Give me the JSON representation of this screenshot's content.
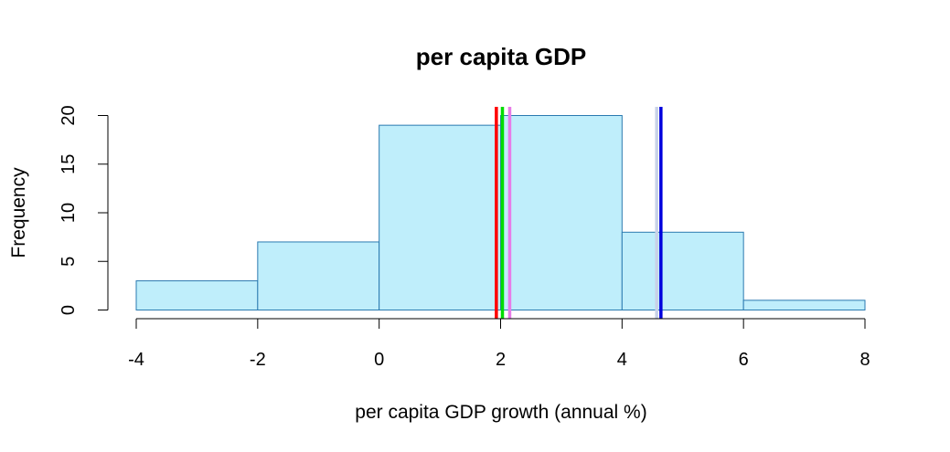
{
  "chart_data": {
    "type": "bar",
    "title": "per capita GDP",
    "xlabel": "per capita GDP growth (annual %)",
    "ylabel": "Frequency",
    "bins": [
      {
        "from": -4,
        "to": -2,
        "count": 3
      },
      {
        "from": -2,
        "to": 0,
        "count": 7
      },
      {
        "from": 0,
        "to": 2,
        "count": 19
      },
      {
        "from": 2,
        "to": 4,
        "count": 20
      },
      {
        "from": 4,
        "to": 6,
        "count": 8
      },
      {
        "from": 6,
        "to": 8,
        "count": 1
      }
    ],
    "xlim": [
      -4,
      8
    ],
    "ylim": [
      0,
      20
    ],
    "x_ticks": [
      -4,
      -2,
      0,
      2,
      4,
      6,
      8
    ],
    "y_ticks": [
      0,
      5,
      10,
      15,
      20
    ],
    "bar_fill": "#bfeefb",
    "bar_stroke": "#2a7ab0",
    "grid": false,
    "reference_lines": [
      {
        "x": 1.93,
        "color": "#ff0000"
      },
      {
        "x": 2.03,
        "color": "#00dd00"
      },
      {
        "x": 2.15,
        "color": "#e87be8"
      },
      {
        "x": 4.57,
        "color": "#c8d2e8"
      },
      {
        "x": 4.64,
        "color": "#0000dd"
      }
    ]
  }
}
